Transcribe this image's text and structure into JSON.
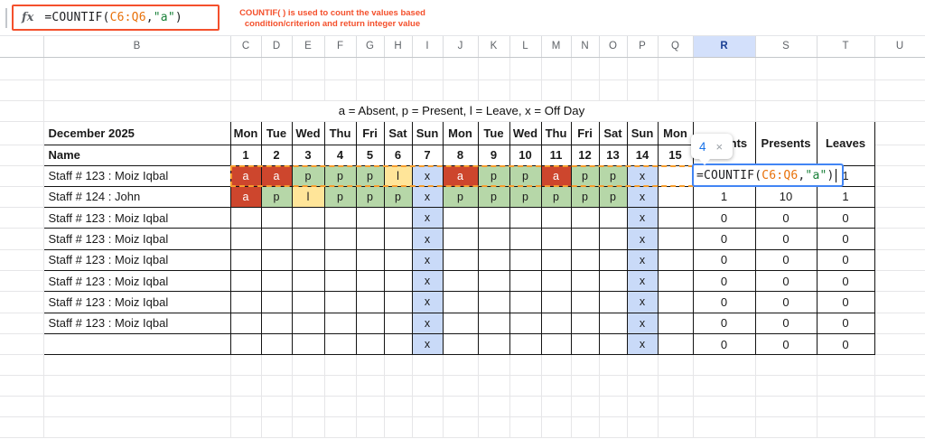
{
  "formula_bar": {
    "fx_label": "fx",
    "formula_parts": [
      {
        "text": "=COUNTIF(",
        "color": "default"
      },
      {
        "text": "C6:Q6",
        "color": "range"
      },
      {
        "text": ",",
        "color": "default"
      },
      {
        "text": "\"a\"",
        "color": "string"
      },
      {
        "text": ")",
        "color": "default"
      }
    ]
  },
  "annotation": {
    "line1": "COUNTIF( ) is used to count the values based",
    "line2": "condition/criterion and return integer value"
  },
  "cell_editor": {
    "result_preview": "4",
    "close_label": "×"
  },
  "sheet": {
    "column_headers": [
      "",
      "B",
      "C",
      "D",
      "E",
      "F",
      "G",
      "H",
      "I",
      "J",
      "K",
      "L",
      "M",
      "N",
      "O",
      "P",
      "Q",
      "R",
      "S",
      "T",
      "U"
    ],
    "selected_column": "R",
    "legend": "a = Absent, p = Present, l = Leave, x = Off Day",
    "table": {
      "month_title": "December 2025",
      "name_label": "Name",
      "day_headers": [
        "Mon",
        "Tue",
        "Wed",
        "Thu",
        "Fri",
        "Sat",
        "Sun",
        "Mon",
        "Tue",
        "Wed",
        "Thu",
        "Fri",
        "Sat",
        "Sun",
        "Mon"
      ],
      "date_headers": [
        "1",
        "2",
        "3",
        "4",
        "5",
        "6",
        "7",
        "8",
        "9",
        "10",
        "11",
        "12",
        "13",
        "14",
        "15"
      ],
      "summary_headers": [
        "Absents",
        "Presents",
        "Leaves"
      ],
      "rows": [
        {
          "name": "Staff # 123 : Moiz Iqbal",
          "days": [
            "a",
            "a",
            "p",
            "p",
            "p",
            "l",
            "x",
            "a",
            "p",
            "p",
            "a",
            "p",
            "p",
            "x",
            ""
          ],
          "summary": [
            "",
            "",
            "1"
          ]
        },
        {
          "name": "Staff # 124 : John",
          "days": [
            "a",
            "p",
            "l",
            "p",
            "p",
            "p",
            "x",
            "p",
            "p",
            "p",
            "p",
            "p",
            "p",
            "x",
            ""
          ],
          "summary": [
            "1",
            "10",
            "1"
          ]
        },
        {
          "name": "Staff # 123 : Moiz Iqbal",
          "days": [
            "",
            "",
            "",
            "",
            "",
            "",
            "x",
            "",
            "",
            "",
            "",
            "",
            "",
            "x",
            ""
          ],
          "summary": [
            "0",
            "0",
            "0"
          ]
        },
        {
          "name": "Staff # 123 : Moiz Iqbal",
          "days": [
            "",
            "",
            "",
            "",
            "",
            "",
            "x",
            "",
            "",
            "",
            "",
            "",
            "",
            "x",
            ""
          ],
          "summary": [
            "0",
            "0",
            "0"
          ]
        },
        {
          "name": "Staff # 123 : Moiz Iqbal",
          "days": [
            "",
            "",
            "",
            "",
            "",
            "",
            "x",
            "",
            "",
            "",
            "",
            "",
            "",
            "x",
            ""
          ],
          "summary": [
            "0",
            "0",
            "0"
          ]
        },
        {
          "name": "Staff # 123 : Moiz Iqbal",
          "days": [
            "",
            "",
            "",
            "",
            "",
            "",
            "x",
            "",
            "",
            "",
            "",
            "",
            "",
            "x",
            ""
          ],
          "summary": [
            "0",
            "0",
            "0"
          ]
        },
        {
          "name": "Staff # 123 : Moiz Iqbal",
          "days": [
            "",
            "",
            "",
            "",
            "",
            "",
            "x",
            "",
            "",
            "",
            "",
            "",
            "",
            "x",
            ""
          ],
          "summary": [
            "0",
            "0",
            "0"
          ]
        },
        {
          "name": "Staff # 123 : Moiz Iqbal",
          "days": [
            "",
            "",
            "",
            "",
            "",
            "",
            "x",
            "",
            "",
            "",
            "",
            "",
            "",
            "x",
            ""
          ],
          "summary": [
            "0",
            "0",
            "0"
          ]
        },
        {
          "name": "",
          "days": [
            "",
            "",
            "",
            "",
            "",
            "",
            "x",
            "",
            "",
            "",
            "",
            "",
            "",
            "x",
            ""
          ],
          "summary": [
            "0",
            "0",
            "0"
          ]
        }
      ]
    }
  },
  "colors": {
    "absent": "#cd462d",
    "present": "#b6d7a8",
    "leave": "#ffe599",
    "offday": "#c9daf8",
    "annotation_red": "#f4502c",
    "range_ref": "#e8710a",
    "string_literal": "#188038",
    "editor_border": "#4285f4",
    "marching_ants": "#f79d2d",
    "selected_header_bg": "#d3e0fb",
    "selected_header_text": "#1a3f94",
    "result_blue": "#1a73e8"
  }
}
